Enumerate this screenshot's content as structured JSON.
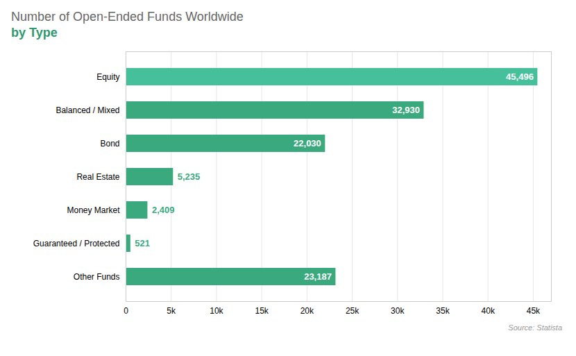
{
  "chart_data": {
    "type": "bar",
    "orientation": "horizontal",
    "title": "Number of Open-Ended Funds Worldwide",
    "subtitle": "by Type",
    "caption": "Source: Statista",
    "categories": [
      "Other Funds",
      "Guaranteed / Protected",
      "Money Market",
      "Real Estate",
      "Bond",
      "Balanced / Mixed",
      "Equity"
    ],
    "values": [
      23187,
      521,
      2409,
      5235,
      22030,
      32930,
      45496
    ],
    "value_labels": [
      "23,187",
      "521",
      "2,409",
      "5,235",
      "22,030",
      "32,930",
      "45,496"
    ],
    "colors": [
      "#3aaa7e",
      "#3aaa7e",
      "#3aaa7e",
      "#3aaa7e",
      "#3aaa7e",
      "#3aaa7e",
      "#45c09a"
    ],
    "data_labels": true,
    "xlim": [
      0,
      47000
    ],
    "xticks": [
      0,
      {
        "value": 5000,
        "label": "5k"
      },
      {
        "value": 10000,
        "label": "10k"
      },
      {
        "value": 15000,
        "label": "15k"
      },
      {
        "value": 20000,
        "label": "20k"
      },
      {
        "value": 25000,
        "label": "25k"
      },
      {
        "value": 30000,
        "label": "30k"
      },
      {
        "value": 35000,
        "label": "35k"
      },
      {
        "value": 40000,
        "label": "40k"
      },
      {
        "value": 45000,
        "label": "45k"
      }
    ],
    "grid": true
  }
}
